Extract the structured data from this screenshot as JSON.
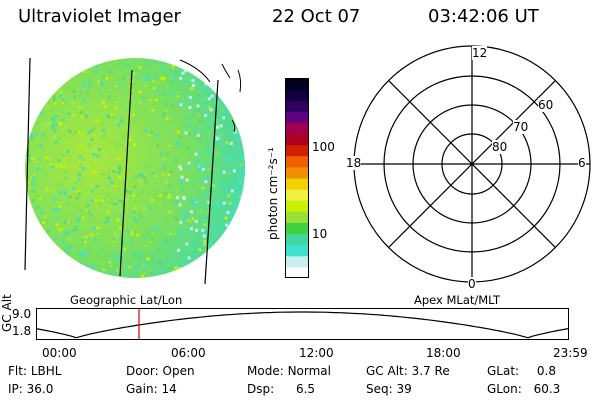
{
  "header": {
    "title": "Ultraviolet Imager",
    "date": "22 Oct 07",
    "time": "03:42:06 UT"
  },
  "colorbar": {
    "unit_label": "photon cm⁻²s⁻¹",
    "tick_high": "100",
    "tick_low": "10",
    "colors": [
      "#ffffff",
      "#c8f0f0",
      "#40e0d0",
      "#40d8a0",
      "#40d040",
      "#9ae03a",
      "#c8f000",
      "#f0f040",
      "#f0d000",
      "#f09000",
      "#f06000",
      "#d02000",
      "#b00020",
      "#a00050",
      "#600080",
      "#300060",
      "#100040",
      "#000020"
    ]
  },
  "image_panel": {
    "caption": "Geographic Lat/Lon",
    "colors": {
      "dominant": "#7ee65a",
      "edge": "#40e0d0",
      "bright": "#c8f000"
    }
  },
  "polar_grid": {
    "caption": "Apex MLat/MLT",
    "mlt_labels": {
      "top": "12",
      "right": "6",
      "bottom": "0",
      "left": "18"
    },
    "lat_labels": [
      "60",
      "70",
      "80"
    ]
  },
  "altitude_plot": {
    "ylabel": "GC Alt",
    "yticks": [
      "9.0",
      "1.8"
    ],
    "xticks": [
      "00:00",
      "06:00",
      "12:00",
      "18:00",
      "23:59"
    ],
    "marker_color": "#cc0000"
  },
  "footer": {
    "row1": [
      {
        "key": "Flt:",
        "value": "LBHL"
      },
      {
        "key": "Door:",
        "value": "Open"
      },
      {
        "key": "Mode:",
        "value": "Normal"
      },
      {
        "key": "GC Alt:",
        "value": "3.7 Re"
      },
      {
        "key": "GLat:",
        "value": "0.8"
      }
    ],
    "row2": [
      {
        "key": "IP:",
        "value": "36.0"
      },
      {
        "key": "Gain:",
        "value": "14"
      },
      {
        "key": "Dsp:",
        "value": "6.5"
      },
      {
        "key": "Seq:",
        "value": "39"
      },
      {
        "key": "GLon:",
        "value": "60.3"
      }
    ]
  }
}
